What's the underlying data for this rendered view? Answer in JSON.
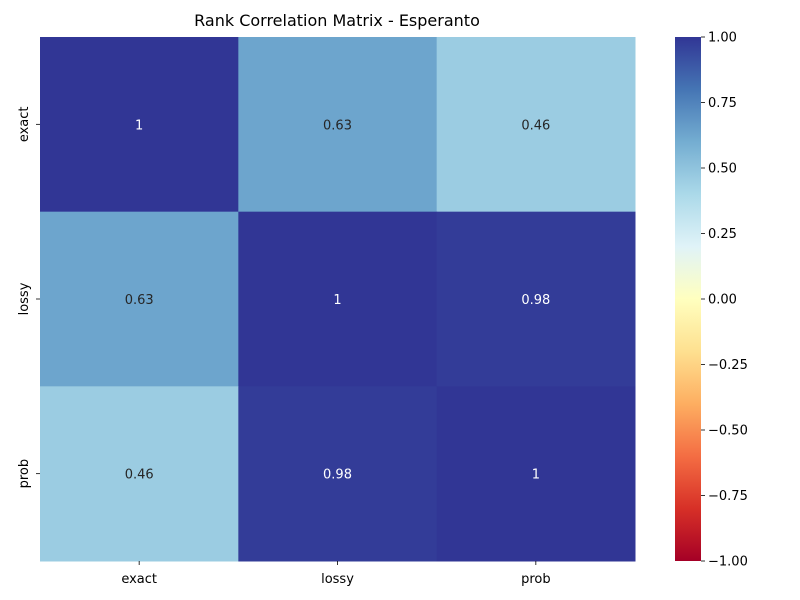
{
  "chart_data": {
    "type": "heatmap",
    "title": "Rank Correlation Matrix - Esperanto",
    "x_categories": [
      "exact",
      "lossy",
      "prob"
    ],
    "y_categories": [
      "exact",
      "lossy",
      "prob"
    ],
    "values": [
      [
        1,
        0.63,
        0.46
      ],
      [
        0.63,
        1,
        0.98
      ],
      [
        0.46,
        0.98,
        1
      ]
    ],
    "cell_labels": [
      [
        "1",
        "0.63",
        "0.46"
      ],
      [
        "0.63",
        "1",
        "0.98"
      ],
      [
        "0.46",
        "0.98",
        "1"
      ]
    ],
    "vmin": -1,
    "vmax": 1,
    "colormap": "RdYlBu",
    "colorbar_ticks": [
      1.0,
      0.75,
      0.5,
      0.25,
      0.0,
      -0.25,
      -0.5,
      -0.75,
      -1.0
    ],
    "colorbar_tick_labels": [
      "1.00",
      "0.75",
      "0.50",
      "0.25",
      "0.00",
      "−0.25",
      "−0.50",
      "−0.75",
      "−1.00"
    ],
    "grid": false
  }
}
